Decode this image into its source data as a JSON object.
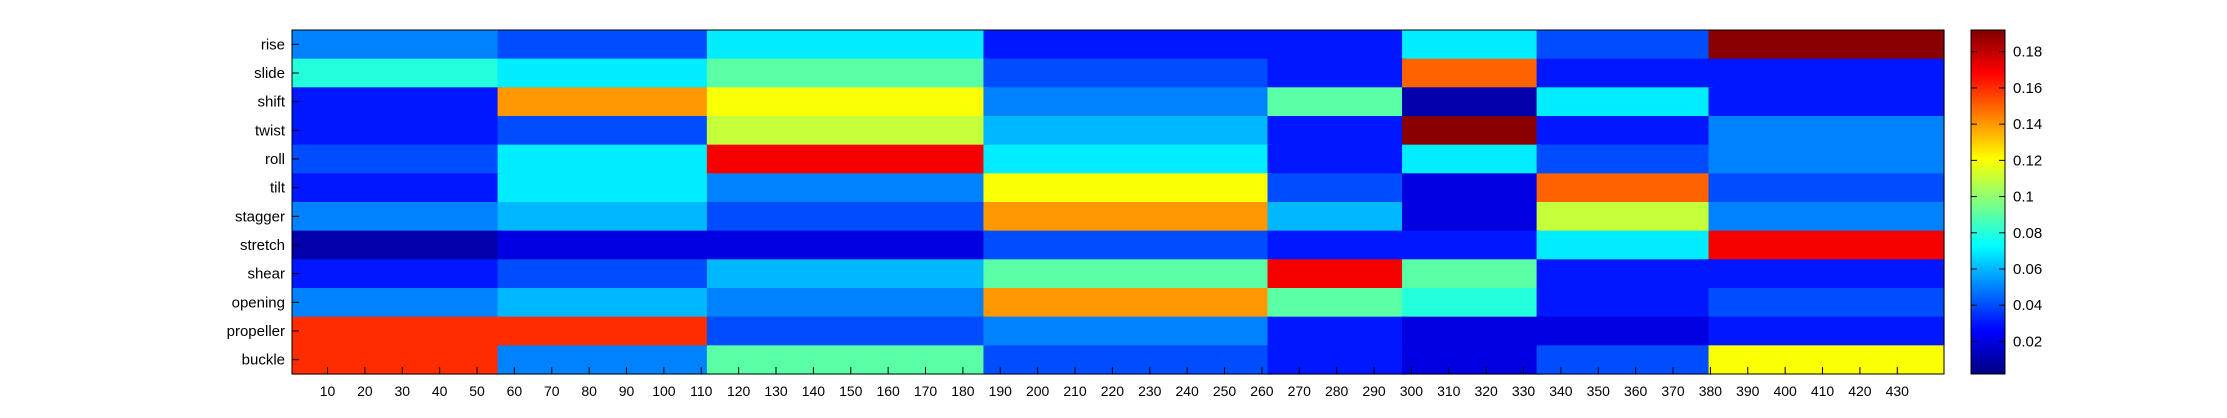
{
  "chart_data": {
    "type": "heatmap",
    "rows": [
      "rise",
      "slide",
      "shift",
      "twist",
      "roll",
      "tilt",
      "stagger",
      "stretch",
      "shear",
      "opening",
      "propeller",
      "buckle"
    ],
    "x_range": [
      1,
      442
    ],
    "x_ticks": [
      10,
      20,
      30,
      40,
      50,
      60,
      70,
      80,
      90,
      100,
      110,
      120,
      130,
      140,
      150,
      160,
      170,
      180,
      190,
      200,
      210,
      220,
      230,
      240,
      250,
      260,
      270,
      280,
      290,
      300,
      310,
      320,
      330,
      340,
      350,
      360,
      370,
      380,
      390,
      400,
      410,
      420,
      430
    ],
    "colormap": "jet",
    "colorbar": {
      "range": [
        0.002,
        0.192
      ],
      "ticks": [
        0.02,
        0.04,
        0.06,
        0.08,
        0.1,
        0.12,
        0.14,
        0.16,
        0.18
      ],
      "tick_labels": [
        "0.02",
        "0.04",
        "0.06",
        "0.08",
        "0.1",
        "0.12",
        "0.14",
        "0.16",
        "0.18"
      ]
    },
    "segment_boundaries": [
      1,
      56,
      112,
      186,
      262,
      298,
      334,
      380,
      442
    ],
    "segment_values": [
      [
        0.05,
        0.04,
        0.07,
        0.03,
        0.03,
        0.07,
        0.04,
        0.19
      ],
      [
        0.08,
        0.07,
        0.09,
        0.04,
        0.03,
        0.15,
        0.03,
        0.03
      ],
      [
        0.03,
        0.14,
        0.12,
        0.05,
        0.09,
        0.01,
        0.07,
        0.03
      ],
      [
        0.03,
        0.04,
        0.11,
        0.06,
        0.03,
        0.19,
        0.03,
        0.05
      ],
      [
        0.04,
        0.07,
        0.17,
        0.07,
        0.03,
        0.07,
        0.04,
        0.05
      ],
      [
        0.03,
        0.07,
        0.05,
        0.12,
        0.04,
        0.02,
        0.15,
        0.04
      ],
      [
        0.05,
        0.06,
        0.04,
        0.14,
        0.06,
        0.02,
        0.11,
        0.05
      ],
      [
        0.01,
        0.02,
        0.02,
        0.04,
        0.03,
        0.03,
        0.07,
        0.17
      ],
      [
        0.03,
        0.04,
        0.06,
        0.09,
        0.17,
        0.09,
        0.03,
        0.03
      ],
      [
        0.05,
        0.06,
        0.05,
        0.14,
        0.09,
        0.08,
        0.03,
        0.04
      ],
      [
        0.16,
        0.16,
        0.04,
        0.05,
        0.03,
        0.02,
        0.02,
        0.03
      ],
      [
        0.16,
        0.05,
        0.09,
        0.04,
        0.03,
        0.02,
        0.04,
        0.12
      ]
    ]
  }
}
